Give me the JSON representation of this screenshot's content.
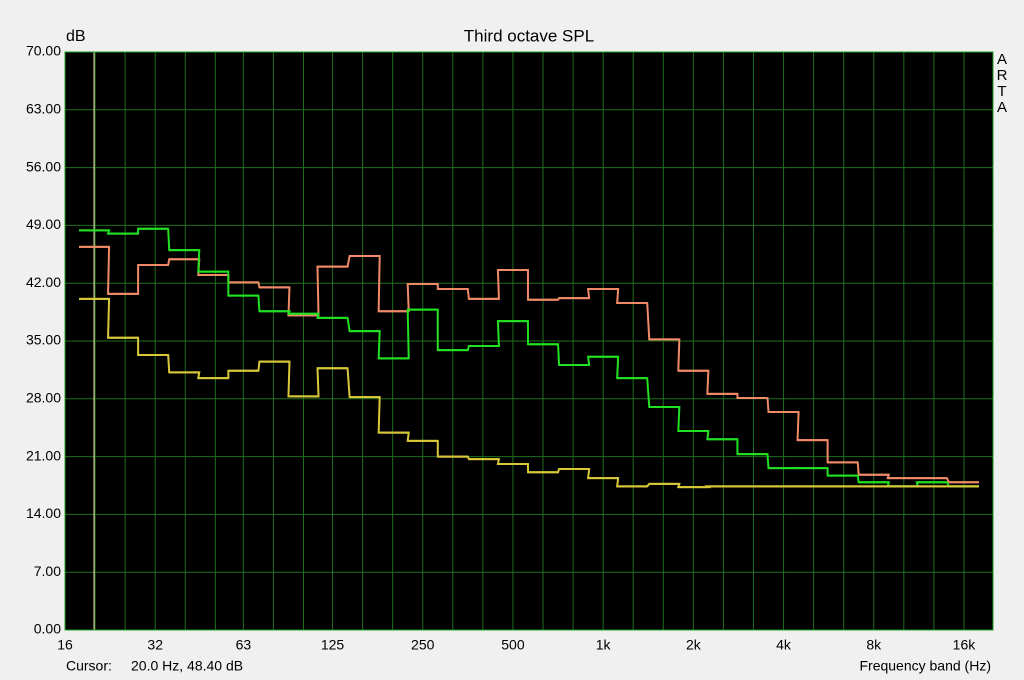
{
  "chart_data": {
    "type": "step",
    "title": "Third octave SPL",
    "y_label": "dB",
    "x_label": "Frequency band (Hz)",
    "watermark": "ARTA",
    "cursor": {
      "label": "Cursor:",
      "x": 20,
      "text": "20.0 Hz, 48.40 dB"
    },
    "log_x": true,
    "grid": true,
    "x": [
      20,
      25,
      31.5,
      40,
      50,
      63,
      80,
      100,
      125,
      160,
      200,
      250,
      315,
      400,
      500,
      630,
      800,
      1000,
      1250,
      1600,
      2000,
      2500,
      3150,
      4000,
      5000,
      6300,
      8000,
      10000,
      12500,
      16000
    ],
    "series": [
      {
        "color": "#f08a68",
        "values": [
          46.4,
          40.7,
          44.2,
          44.9,
          43.0,
          42.1,
          41.5,
          38.1,
          44.0,
          45.3,
          38.6,
          41.9,
          41.3,
          40.1,
          43.6,
          40.0,
          40.2,
          41.3,
          39.6,
          35.2,
          31.4,
          28.6,
          28.1,
          26.4,
          23.0,
          20.3,
          18.8,
          18.4,
          18.4,
          17.9
        ]
      },
      {
        "color": "#22e022",
        "values": [
          48.4,
          48.0,
          48.6,
          46.0,
          43.4,
          40.5,
          38.6,
          38.3,
          37.8,
          36.2,
          32.9,
          38.8,
          33.9,
          34.4,
          37.4,
          34.6,
          32.1,
          33.1,
          30.5,
          27.0,
          24.1,
          23.1,
          21.3,
          19.6,
          19.6,
          18.7,
          17.9,
          17.4,
          17.9,
          17.4
        ]
      },
      {
        "color": "#d8c83a",
        "values": [
          40.1,
          35.4,
          33.3,
          31.2,
          30.5,
          31.4,
          32.5,
          28.3,
          31.7,
          28.2,
          23.9,
          22.9,
          21.0,
          20.7,
          20.1,
          19.1,
          19.5,
          18.4,
          17.4,
          17.7,
          17.3,
          17.4,
          17.4,
          17.4,
          17.4,
          17.4,
          17.4,
          17.4,
          17.4,
          17.4
        ]
      }
    ],
    "xlim": [
      16,
      20000
    ],
    "xticks": [
      16,
      32,
      63,
      125,
      250,
      500,
      {
        "value": 1000,
        "label": "1k"
      },
      {
        "value": 2000,
        "label": "2k"
      },
      {
        "value": 4000,
        "label": "4k"
      },
      {
        "value": 8000,
        "label": "8k"
      },
      {
        "value": 16000,
        "label": "16k"
      }
    ],
    "ylim": [
      0,
      70
    ],
    "yticks": [
      {
        "value": 0,
        "label": "0.00"
      },
      {
        "value": 7,
        "label": "7.00"
      },
      {
        "value": 14,
        "label": "14.00"
      },
      {
        "value": 21,
        "label": "21.00"
      },
      {
        "value": 28,
        "label": "28.00"
      },
      {
        "value": 35,
        "label": "35.00"
      },
      {
        "value": 42,
        "label": "42.00"
      },
      {
        "value": 49,
        "label": "49.00"
      },
      {
        "value": 56,
        "label": "56.00"
      },
      {
        "value": 63,
        "label": "63.00"
      },
      {
        "value": 70,
        "label": "70.00"
      }
    ]
  }
}
